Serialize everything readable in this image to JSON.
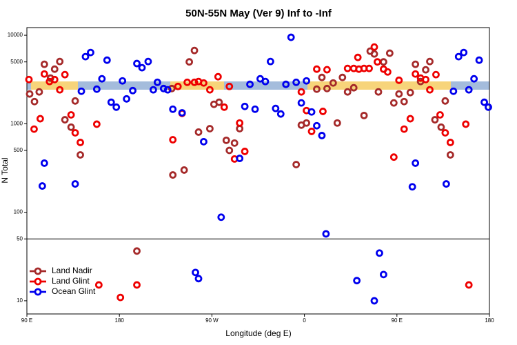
{
  "chart_data": {
    "type": "scatter",
    "title": "50N-55N May (Ver 9)   Inf to -Inf",
    "xlabel": "Longitude (deg E)",
    "ylabel": "N Total",
    "xlim": [
      90,
      540
    ],
    "xticks": [
      {
        "value": 90,
        "label": "90 E"
      },
      180,
      {
        "value": 270,
        "label": "90 W"
      },
      {
        "value": 360,
        "label": "0"
      },
      {
        "value": 450,
        "label": "90 E"
      },
      {
        "value": 540,
        "label": "180"
      }
    ],
    "ylim": [
      7.1,
      12200
    ],
    "log_y": true,
    "yticks": [
      10,
      50,
      100,
      500,
      1000,
      5000,
      10000
    ],
    "panel_break": 50,
    "legend": "lower left",
    "series": [
      {
        "name": "Land Nadir",
        "color": "#a52a2a",
        "x": [
          92.7,
          97.4,
          102,
          107,
          113,
          117,
          122,
          127,
          133,
          137,
          142,
          231,
          232,
          243,
          248,
          253,
          257,
          268,
          272,
          277,
          284,
          287,
          292,
          297,
          352,
          357,
          362,
          372,
          377,
          382,
          388,
          392,
          397,
          402,
          408,
          418,
          424,
          428,
          432,
          437,
          443,
          447,
          452,
          457,
          463,
          468,
          473,
          478,
          482,
          487,
          493,
          497,
          502,
          197
        ],
        "values": [
          2170,
          1780,
          2290,
          4700,
          3280,
          4140,
          5050,
          1110,
          915,
          1810,
          445,
          2500,
          264,
          300,
          5000,
          6730,
          805,
          880,
          1660,
          1750,
          650,
          500,
          605,
          880,
          346,
          965,
          1020,
          2460,
          3340,
          2500,
          2890,
          1020,
          3340,
          2290,
          2550,
          1240,
          6610,
          6150,
          2290,
          5000,
          6270,
          1720,
          2170,
          1780,
          2250,
          4700,
          3000,
          4070,
          5050,
          1110,
          915,
          1810,
          445,
          36.5
        ]
      },
      {
        "name": "Land Glint",
        "color": "#ee0000",
        "x": [
          92,
          97,
          103,
          107,
          112,
          117,
          122,
          127,
          133,
          137,
          142,
          158,
          232,
          237,
          241,
          246,
          253,
          257,
          262,
          268,
          276,
          282,
          287,
          297,
          292,
          302,
          357,
          362,
          367,
          372,
          382,
          378,
          402,
          408,
          413,
          418,
          423,
          412,
          428,
          431,
          437,
          441,
          452,
          447,
          457,
          463,
          468,
          473,
          478,
          482,
          488,
          492,
          497,
          502,
          517,
          160,
          181,
          197,
          520
        ],
        "values": [
          3160,
          870,
          1140,
          3650,
          3000,
          3160,
          2420,
          3590,
          1260,
          790,
          615,
          990,
          660,
          2640,
          1310,
          2940,
          2940,
          3000,
          2890,
          2420,
          3400,
          1540,
          2640,
          1020,
          400,
          487,
          2290,
          1410,
          820,
          4140,
          4080,
          1380,
          4220,
          4220,
          4140,
          4220,
          4220,
          5620,
          7360,
          5000,
          4140,
          3850,
          3100,
          420,
          870,
          1140,
          3650,
          3280,
          3160,
          2420,
          3590,
          1260,
          790,
          615,
          990,
          15.1,
          10.9,
          15.1,
          15.1
        ]
      },
      {
        "name": "Ocean Glint",
        "color": "#0000ee",
        "x": [
          105,
          107,
          137,
          143,
          147,
          152,
          158,
          163,
          168,
          172,
          177,
          183,
          187,
          193,
          197,
          202,
          208,
          213,
          217,
          223,
          227,
          232,
          241,
          262,
          279,
          297,
          302,
          307,
          312,
          317,
          322,
          327,
          332,
          337,
          342,
          347,
          352,
          357,
          362,
          367,
          372,
          377,
          381,
          465,
          468,
          498,
          505,
          510,
          515,
          520,
          525,
          530,
          535,
          539,
          254,
          257,
          411,
          428,
          433,
          437
        ],
        "values": [
          198,
          359,
          209,
          2330,
          5730,
          6380,
          2460,
          3220,
          5230,
          1750,
          1540,
          3050,
          1910,
          2370,
          4790,
          4300,
          5050,
          2420,
          2940,
          2500,
          2420,
          1460,
          1330,
          627,
          88,
          406,
          1570,
          2790,
          1460,
          3220,
          3000,
          5050,
          1490,
          1290,
          2790,
          9480,
          2940,
          1720,
          3050,
          1360,
          950,
          736,
          57,
          194,
          359,
          209,
          2330,
          5730,
          6380,
          2420,
          3220,
          5230,
          1750,
          1540,
          20.9,
          17.8,
          16.9,
          10,
          34.6,
          19.8
        ]
      }
    ]
  }
}
